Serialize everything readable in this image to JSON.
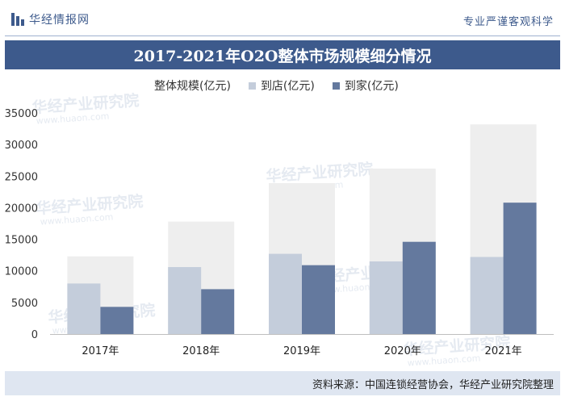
{
  "header": {
    "brand_name": "华经情报网",
    "slogan": "专业严谨客观科学"
  },
  "title": "2017-2021年O2O整体市场规模细分情况",
  "legend": [
    {
      "label": "整体规模(亿元)"
    },
    {
      "label": "到店(亿元)"
    },
    {
      "label": "到家(亿元)"
    }
  ],
  "colors": {
    "total": "#eeeeee",
    "store": "#c4cddb",
    "home": "#64799e",
    "brand": "#3d5a8c"
  },
  "chart_data": {
    "type": "bar",
    "categories": [
      "2017年",
      "2018年",
      "2019年",
      "2020年",
      "2021年"
    ],
    "series": [
      {
        "name": "整体规模(亿元)",
        "values": [
          12300,
          17800,
          23900,
          26200,
          33200
        ]
      },
      {
        "name": "到店(亿元)",
        "values": [
          8000,
          10600,
          12700,
          11500,
          12200
        ]
      },
      {
        "name": "到家(亿元)",
        "values": [
          4300,
          7100,
          10900,
          14600,
          20800
        ]
      }
    ],
    "ylim": [
      0,
      35000
    ],
    "yticks": [
      0,
      5000,
      10000,
      15000,
      20000,
      25000,
      30000,
      35000
    ],
    "ytick_labels": [
      "0",
      "5000",
      "10000",
      "15000",
      "20000",
      "25000",
      "30000",
      "35000"
    ],
    "grid": false,
    "legend_position": "top"
  },
  "watermarks": [
    "华经产业研究院",
    "华经产业研究院",
    "华经产业研究院",
    "华经产业研究院",
    "华经产业研究院",
    "华经产业研究院"
  ],
  "watermark_url": "www.huaon.com",
  "source": "资料来源：中国连锁经营协会，华经产业研究院整理"
}
